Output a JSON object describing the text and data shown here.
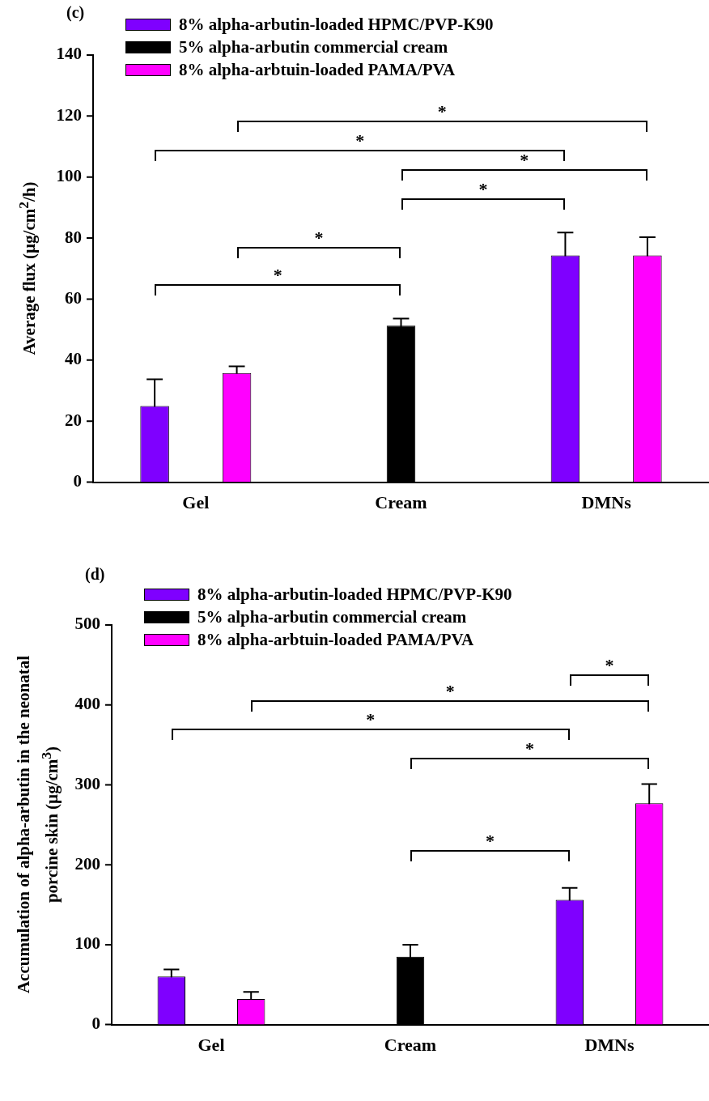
{
  "chart_data": [
    {
      "type": "bar",
      "title": "(c)",
      "ylabel": "Average flux (µg/cm$^{2}$/h)",
      "categories": [
        "Gel",
        "Cream",
        "DMNs"
      ],
      "series": [
        {
          "name": "8% alpha-arbutin-loaded HPMC/PVP-K90",
          "color": "#7f00ff",
          "values": [
            25,
            null,
            74.3
          ],
          "errors": [
            8.7,
            null,
            7.5
          ]
        },
        {
          "name": "5% alpha-arbutin commercial cream",
          "color": "#000000",
          "values": [
            null,
            51.3,
            null
          ],
          "errors": [
            null,
            2.3,
            null
          ]
        },
        {
          "name": "8% alpha-arbtuin-loaded PAMA/PVA",
          "color": "#ff00ff",
          "values": [
            35.8,
            null,
            74.3
          ],
          "errors": [
            2.2,
            null,
            6
          ]
        }
      ],
      "ylim": [
        0,
        140
      ],
      "yticks": [
        0,
        20,
        40,
        60,
        80,
        100,
        120,
        140
      ],
      "grid": false,
      "legend": "top left",
      "annotations": [
        "*",
        "*",
        "*",
        "*",
        "*",
        "*"
      ]
    },
    {
      "type": "bar",
      "title": "(d)",
      "ylabel": "Accumulation of alpha-arbutin in the neonatal porcine skin (µg/cm$^{3}$)",
      "categories": [
        "Gel",
        "Cream",
        "DMNs"
      ],
      "series": [
        {
          "name": "8% alpha-arbutin-loaded HPMC/PVP-K90",
          "color": "#7f00ff",
          "values": [
            60,
            null,
            156
          ],
          "errors": [
            9,
            null,
            15
          ]
        },
        {
          "name": "5% alpha-arbutin commercial cream",
          "color": "#000000",
          "values": [
            null,
            85,
            null
          ],
          "errors": [
            null,
            15,
            null
          ]
        },
        {
          "name": "8% alpha-arbtuin-loaded PAMA/PVA",
          "color": "#ff00ff",
          "values": [
            32,
            null,
            277
          ],
          "errors": [
            9,
            null,
            24
          ]
        }
      ],
      "ylim": [
        0,
        500
      ],
      "yticks": [
        0,
        100,
        200,
        300,
        400,
        500
      ],
      "grid": false,
      "legend": "top left",
      "annotations": [
        "*",
        "*",
        "*",
        "*",
        "*"
      ]
    }
  ]
}
